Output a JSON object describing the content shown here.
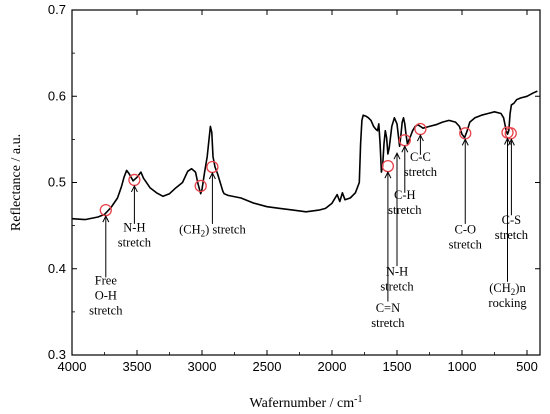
{
  "chart_data": {
    "type": "line",
    "xlabel": "Wafernumber / cm",
    "xlabel_sup": "-1",
    "ylabel": "Reflectance / a.u.",
    "xlim": [
      4000,
      400
    ],
    "ylim": [
      0.3,
      0.7
    ],
    "x_reversed": true,
    "grid": false,
    "legend": "none",
    "line_color": "#000000",
    "marker_color": "#e8424a",
    "x_ticks": [
      {
        "value": 4000,
        "label": "4000"
      },
      {
        "value": 3500,
        "label": "3500"
      },
      {
        "value": 3000,
        "label": "3000"
      },
      {
        "value": 2500,
        "label": "2500"
      },
      {
        "value": 2000,
        "label": "2000"
      },
      {
        "value": 1500,
        "label": "1500"
      },
      {
        "value": 1000,
        "label": "1000"
      },
      {
        "value": 500,
        "label": "500"
      }
    ],
    "y_ticks": [
      {
        "value": 0.3,
        "label": "0.3"
      },
      {
        "value": 0.4,
        "label": "0.4"
      },
      {
        "value": 0.5,
        "label": "0.5"
      },
      {
        "value": 0.6,
        "label": "0.6"
      },
      {
        "value": 0.7,
        "label": "0.7"
      }
    ],
    "series": [
      {
        "x": [
          4000,
          3900,
          3800,
          3750,
          3700,
          3650,
          3620,
          3600,
          3580,
          3560,
          3530,
          3500,
          3470,
          3450,
          3400,
          3350,
          3300,
          3250,
          3200,
          3150,
          3110,
          3080,
          3050,
          3030,
          3010,
          3000,
          2980,
          2960,
          2945,
          2935,
          2925,
          2915,
          2900,
          2880,
          2860,
          2850,
          2840,
          2830,
          2800,
          2700,
          2600,
          2500,
          2400,
          2300,
          2200,
          2100,
          2050,
          2000,
          1960,
          1940,
          1920,
          1900,
          1860,
          1820,
          1790,
          1780,
          1770,
          1760,
          1740,
          1720,
          1700,
          1680,
          1665,
          1650,
          1640,
          1630,
          1620,
          1610,
          1600,
          1590,
          1580,
          1570,
          1560,
          1540,
          1520,
          1500,
          1490,
          1480,
          1470,
          1460,
          1450,
          1440,
          1430,
          1420,
          1400,
          1380,
          1360,
          1340,
          1320,
          1300,
          1250,
          1200,
          1150,
          1100,
          1050,
          1020,
          1000,
          980,
          960,
          940,
          900,
          850,
          800,
          750,
          700,
          680,
          660,
          650,
          640,
          630,
          620,
          600,
          580,
          550,
          500,
          450,
          420
        ],
        "y": [
          0.458,
          0.457,
          0.46,
          0.463,
          0.471,
          0.482,
          0.495,
          0.506,
          0.514,
          0.51,
          0.502,
          0.506,
          0.512,
          0.505,
          0.494,
          0.488,
          0.484,
          0.487,
          0.494,
          0.5,
          0.513,
          0.516,
          0.512,
          0.498,
          0.487,
          0.492,
          0.512,
          0.53,
          0.552,
          0.565,
          0.558,
          0.53,
          0.518,
          0.51,
          0.5,
          0.495,
          0.49,
          0.487,
          0.485,
          0.482,
          0.476,
          0.472,
          0.47,
          0.468,
          0.466,
          0.468,
          0.47,
          0.476,
          0.486,
          0.478,
          0.488,
          0.48,
          0.482,
          0.488,
          0.5,
          0.545,
          0.572,
          0.578,
          0.577,
          0.575,
          0.572,
          0.565,
          0.562,
          0.56,
          0.568,
          0.545,
          0.512,
          0.52,
          0.545,
          0.56,
          0.552,
          0.533,
          0.54,
          0.565,
          0.575,
          0.568,
          0.555,
          0.542,
          0.555,
          0.57,
          0.575,
          0.568,
          0.555,
          0.545,
          0.552,
          0.56,
          0.565,
          0.567,
          0.565,
          0.563,
          0.565,
          0.567,
          0.57,
          0.572,
          0.57,
          0.565,
          0.556,
          0.552,
          0.56,
          0.57,
          0.575,
          0.578,
          0.58,
          0.582,
          0.58,
          0.575,
          0.56,
          0.556,
          0.56,
          0.58,
          0.59,
          0.592,
          0.596,
          0.598,
          0.6,
          0.604,
          0.606
        ]
      }
    ],
    "markers": [
      {
        "x": 3740,
        "y": 0.468
      },
      {
        "x": 3520,
        "y": 0.503
      },
      {
        "x": 3010,
        "y": 0.496
      },
      {
        "x": 2920,
        "y": 0.518
      },
      {
        "x": 1570,
        "y": 0.519
      },
      {
        "x": 1440,
        "y": 0.549
      },
      {
        "x": 1320,
        "y": 0.562
      },
      {
        "x": 975,
        "y": 0.557
      },
      {
        "x": 650,
        "y": 0.558
      },
      {
        "x": 625,
        "y": 0.557
      }
    ],
    "annotations": [
      {
        "lines": [
          "Free",
          "O-H",
          "stretch"
        ],
        "x": 3740,
        "text_y": 0.382,
        "line_to": 0.39,
        "line_from": 0.461
      },
      {
        "lines": [
          "N-H",
          "stretch"
        ],
        "x": 3520,
        "text_y": 0.443,
        "line_to": 0.452,
        "line_from": 0.496
      },
      {
        "lines": [
          "stretch"
        ],
        "x": 2920,
        "text_y": 0.441,
        "line_to": 0.452,
        "line_from": 0.511,
        "sub_label": true
      },
      {
        "lines": [
          "C=N",
          "stretch"
        ],
        "x": 1570,
        "text_y": 0.35,
        "line_to": 0.362,
        "line_from": 0.512
      },
      {
        "lines": [
          "N-H",
          "stretch"
        ],
        "x": 1500,
        "text_y": 0.392,
        "line_to": 0.403,
        "line_from": 0.534
      },
      {
        "lines": [
          "C-H",
          "stretch"
        ],
        "x": 1440,
        "text_y": 0.481,
        "line_to": 0.488,
        "line_from": 0.542
      },
      {
        "lines": [
          "C-C",
          "stretch"
        ],
        "x": 1320,
        "text_y": 0.525,
        "line_to": 0.532,
        "line_from": 0.555
      },
      {
        "lines": [
          "C-O",
          "stretch"
        ],
        "x": 975,
        "text_y": 0.441,
        "line_to": 0.452,
        "line_from": 0.55
      },
      {
        "lines": [
          "(CH",
          "rocking"
        ],
        "x": 650,
        "text_y": 0.373,
        "line_to": 0.385,
        "line_from": 0.551,
        "ch2n": true
      },
      {
        "lines": [
          "C-S",
          "stretch"
        ],
        "x": 620,
        "text_y": 0.452,
        "line_to": 0.462,
        "line_from": 0.55
      }
    ],
    "ch2_label": {
      "open": "(CH",
      "sub": "2",
      "close": ") stretch"
    },
    "ch2n_label": {
      "open": "(CH",
      "sub": "2",
      "close": ")n"
    }
  }
}
